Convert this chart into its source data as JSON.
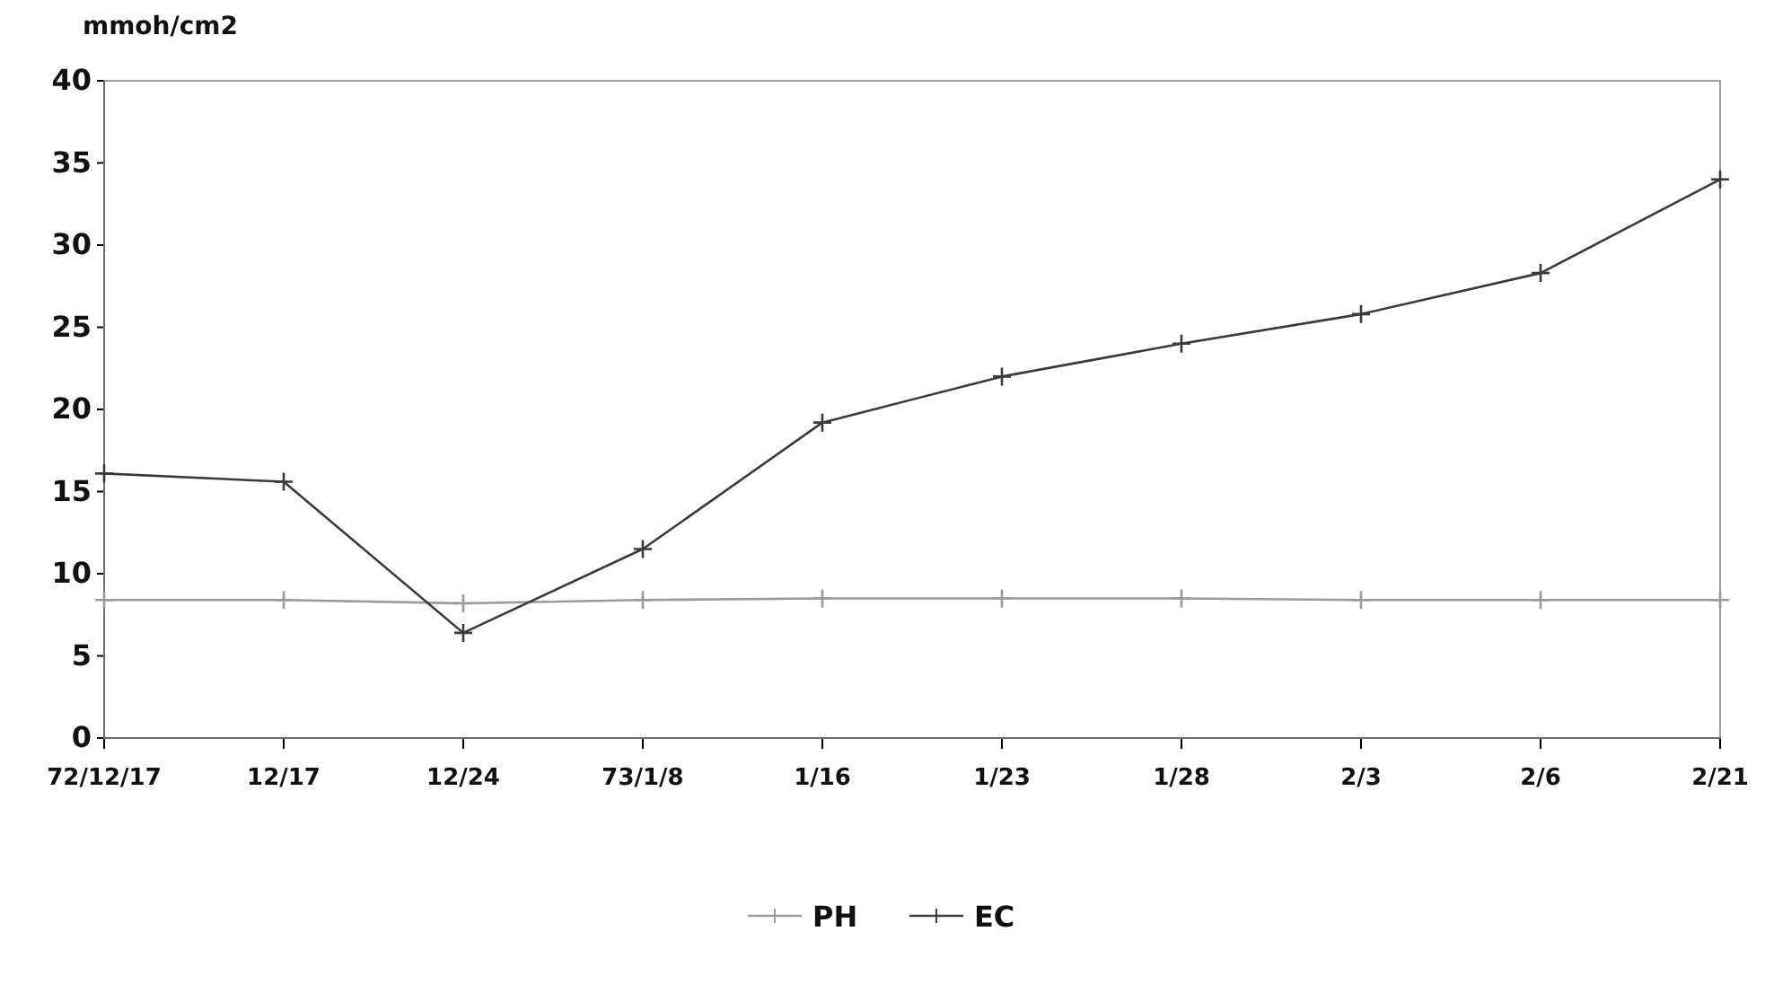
{
  "chart_data": {
    "type": "line",
    "ylabel": "mmoh/cm2",
    "categories": [
      "72/12/17",
      "12/17",
      "12/24",
      "73/1/8",
      "1/16",
      "1/23",
      "1/28",
      "2/3",
      "2/6",
      "2/21"
    ],
    "series": [
      {
        "name": "PH",
        "color": "#9a9a9a",
        "values": [
          8.4,
          8.4,
          8.2,
          8.4,
          8.5,
          8.5,
          8.5,
          8.4,
          8.4,
          8.4
        ]
      },
      {
        "name": "EC",
        "color": "#3a3a3a",
        "values": [
          16.1,
          15.6,
          6.4,
          11.5,
          19.2,
          22.0,
          24.0,
          25.8,
          28.3,
          34.0
        ]
      }
    ],
    "ylim": [
      0,
      40
    ],
    "yticks": [
      0,
      5,
      10,
      15,
      20,
      25,
      30,
      35,
      40
    ],
    "grid": false,
    "legend": "bottom",
    "marker": "cross"
  }
}
